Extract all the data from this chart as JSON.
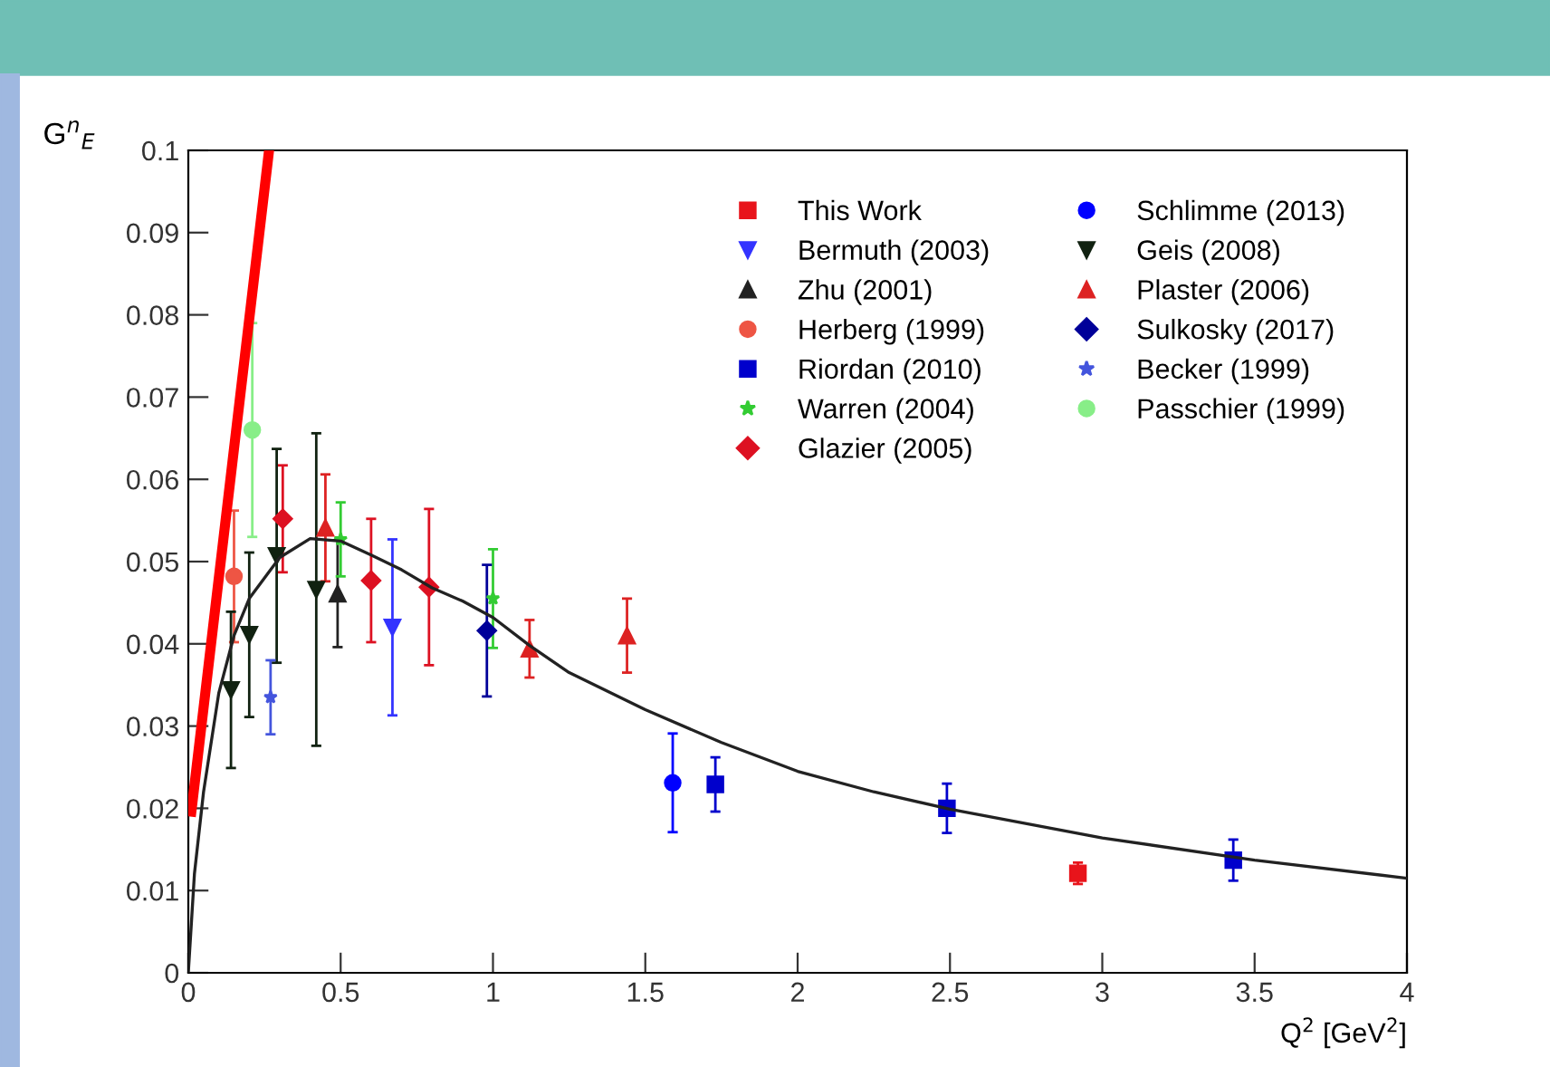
{
  "chart_data": {
    "type": "scatter",
    "xlabel": "Q$^{2}$ [GeV$^{2}$]",
    "ylabel": "G$^{n}$$_{E}$",
    "xlim": [
      0,
      4
    ],
    "ylim": [
      0,
      0.1
    ],
    "xticks": [
      0,
      0.5,
      1,
      1.5,
      2,
      2.5,
      3,
      3.5,
      4
    ],
    "yticks": [
      0,
      0.01,
      0.02,
      0.03,
      0.04,
      0.05,
      0.06,
      0.07,
      0.08,
      0.09,
      0.1
    ],
    "grid": false,
    "legend": "top right",
    "series": [
      {
        "name": "This Work",
        "color": "#e8141b",
        "marker": "square",
        "x": [
          2.92
        ],
        "values": [
          0.0121
        ],
        "errors": [
          0.0013
        ]
      },
      {
        "name": "Bermuth (2003)",
        "color": "#3333ff",
        "marker": "triangle_down",
        "x": [
          0.67
        ],
        "values": [
          0.042
        ],
        "errors": [
          0.0107
        ]
      },
      {
        "name": "Zhu (2001)",
        "color": "#222222",
        "marker": "triangle",
        "x": [
          0.49
        ],
        "values": [
          0.0461
        ],
        "errors": [
          0.0065
        ]
      },
      {
        "name": "Herberg (1999)",
        "color": "#ee5544",
        "marker": "circle",
        "x": [
          0.15
        ],
        "values": [
          0.0482
        ],
        "errors": [
          0.008
        ]
      },
      {
        "name": "Riordan (2010)",
        "color": "#0000cc",
        "marker": "square",
        "x": [
          1.73,
          2.49,
          3.43
        ],
        "values": [
          0.0229,
          0.02,
          0.0137
        ],
        "errors": [
          0.0033,
          0.003,
          0.0025
        ]
      },
      {
        "name": "Warren (2004)",
        "color": "#33cc33",
        "marker": "star",
        "x": [
          0.5,
          1.0
        ],
        "values": [
          0.0527,
          0.0455
        ],
        "errors": [
          0.0045,
          0.006
        ]
      },
      {
        "name": "Glazier (2005)",
        "color": "#dd1122",
        "marker": "diamond",
        "x": [
          0.31,
          0.6,
          0.79
        ],
        "values": [
          0.0552,
          0.0477,
          0.0469
        ],
        "errors": [
          0.0065,
          0.0075,
          0.0095
        ]
      },
      {
        "name": "Schlimme (2013)",
        "color": "#0000ff",
        "marker": "circle",
        "x": [
          1.59
        ],
        "values": [
          0.0231
        ],
        "errors": [
          0.006
        ]
      },
      {
        "name": "Geis (2008)",
        "color": "#112211",
        "marker": "triangle_down",
        "x": [
          0.14,
          0.2,
          0.29,
          0.42
        ],
        "values": [
          0.0344,
          0.0411,
          0.0507,
          0.0466
        ],
        "errors": [
          0.0095,
          0.01,
          0.013,
          0.019
        ]
      },
      {
        "name": "Plaster (2006)",
        "color": "#dd2222",
        "marker": "triangle",
        "x": [
          0.45,
          1.12,
          1.44
        ],
        "values": [
          0.0541,
          0.0394,
          0.041
        ],
        "errors": [
          0.0065,
          0.0035,
          0.0045
        ]
      },
      {
        "name": "Sulkosky (2017)",
        "color": "#000099",
        "marker": "diamond",
        "x": [
          0.98
        ],
        "values": [
          0.0416
        ],
        "errors": [
          0.008
        ]
      },
      {
        "name": "Becker (1999)",
        "color": "#4455dd",
        "marker": "star",
        "x": [
          0.27
        ],
        "values": [
          0.0335
        ],
        "errors": [
          0.0045
        ]
      },
      {
        "name": "Passchier (1999)",
        "color": "#88ee88",
        "marker": "circle",
        "x": [
          0.21
        ],
        "values": [
          0.066
        ],
        "errors": [
          0.013
        ]
      },
      {
        "type": "line",
        "color": "#222222",
        "marker": "none",
        "x": [
          0,
          0.02,
          0.05,
          0.1,
          0.15,
          0.2,
          0.3,
          0.4,
          0.5,
          0.6,
          0.7,
          0.8,
          0.9,
          1.0,
          1.12,
          1.25,
          1.5,
          1.75,
          2,
          2.25,
          2.5,
          3,
          3.5,
          4
        ],
        "values": [
          0,
          0.012,
          0.022,
          0.034,
          0.041,
          0.0455,
          0.0505,
          0.0528,
          0.0525,
          0.0508,
          0.049,
          0.0468,
          0.0452,
          0.0432,
          0.0398,
          0.0365,
          0.032,
          0.028,
          0.0245,
          0.022,
          0.0199,
          0.0164,
          0.0137,
          0.0115
        ]
      },
      {
        "type": "line",
        "color": "#ff0000",
        "marker": "none",
        "x": [
          0.01,
          0.265
        ],
        "values": [
          0.0196,
          0.1
        ]
      }
    ]
  }
}
